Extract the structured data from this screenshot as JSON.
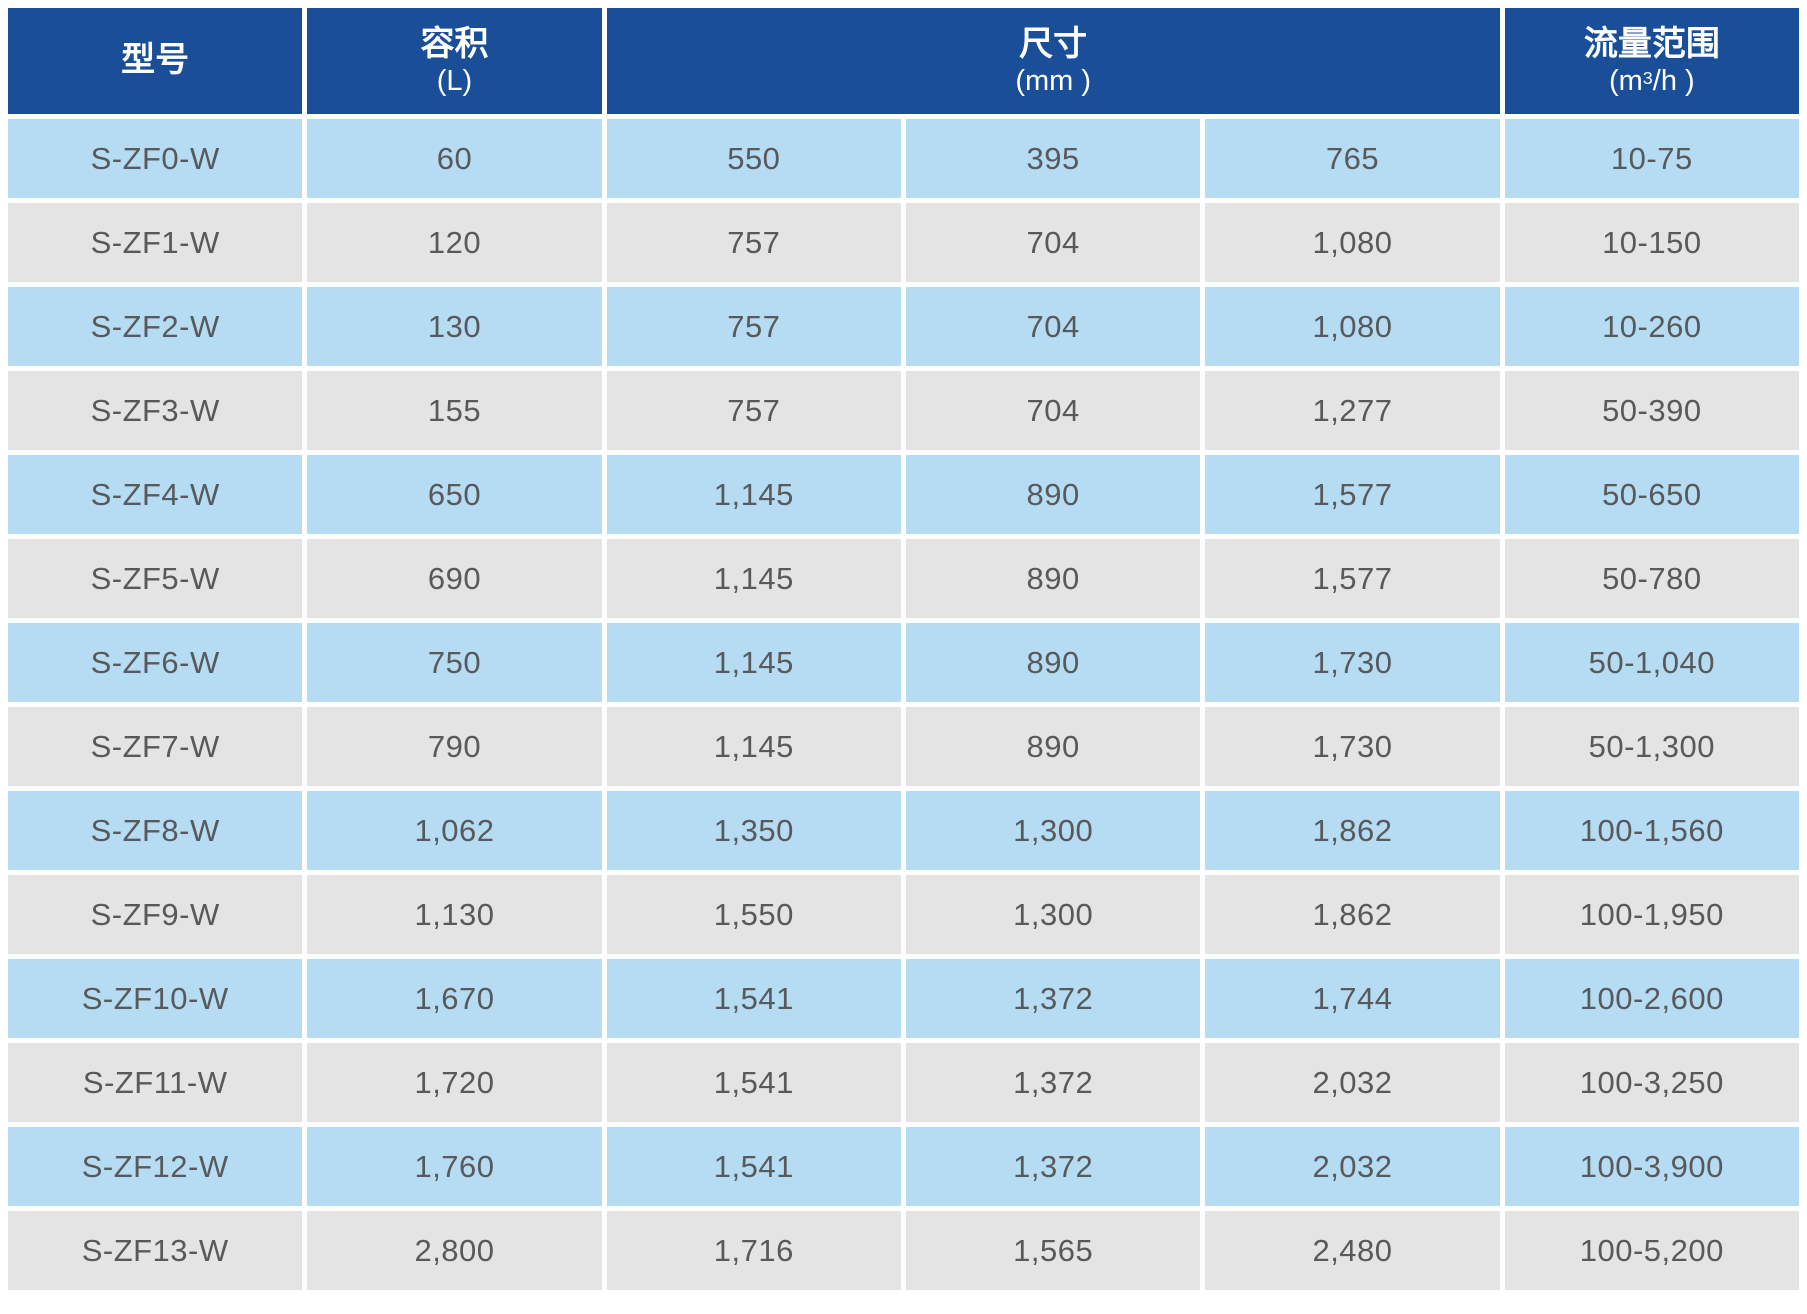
{
  "colors": {
    "header_bg": "#1A4E98",
    "header_text": "#FFFFFF",
    "row_blue": "#B6DCF3",
    "row_gray": "#E4E4E4",
    "cell_text": "#58595B"
  },
  "chart_data": {
    "type": "table",
    "header": {
      "model": "型号",
      "volume_title": "容积",
      "volume_unit": "(L)",
      "size_title": "尺寸",
      "size_unit": "(mm )",
      "flow_title": "流量范围",
      "flow_unit_prefix": "(m",
      "flow_unit_sup": "3",
      "flow_unit_suffix": "/h )"
    },
    "rows": [
      {
        "model": "S-ZF0-W",
        "volume": "60",
        "dim1": "550",
        "dim2": "395",
        "dim3": "765",
        "flow": "10-75"
      },
      {
        "model": "S-ZF1-W",
        "volume": "120",
        "dim1": "757",
        "dim2": "704",
        "dim3": "1,080",
        "flow": "10-150"
      },
      {
        "model": "S-ZF2-W",
        "volume": "130",
        "dim1": "757",
        "dim2": "704",
        "dim3": "1,080",
        "flow": "10-260"
      },
      {
        "model": "S-ZF3-W",
        "volume": "155",
        "dim1": "757",
        "dim2": "704",
        "dim3": "1,277",
        "flow": "50-390"
      },
      {
        "model": "S-ZF4-W",
        "volume": "650",
        "dim1": "1,145",
        "dim2": "890",
        "dim3": "1,577",
        "flow": "50-650"
      },
      {
        "model": "S-ZF5-W",
        "volume": "690",
        "dim1": "1,145",
        "dim2": "890",
        "dim3": "1,577",
        "flow": "50-780"
      },
      {
        "model": "S-ZF6-W",
        "volume": "750",
        "dim1": "1,145",
        "dim2": "890",
        "dim3": "1,730",
        "flow": "50-1,040"
      },
      {
        "model": "S-ZF7-W",
        "volume": "790",
        "dim1": "1,145",
        "dim2": "890",
        "dim3": "1,730",
        "flow": "50-1,300"
      },
      {
        "model": "S-ZF8-W",
        "volume": "1,062",
        "dim1": "1,350",
        "dim2": "1,300",
        "dim3": "1,862",
        "flow": "100-1,560"
      },
      {
        "model": "S-ZF9-W",
        "volume": "1,130",
        "dim1": "1,550",
        "dim2": "1,300",
        "dim3": "1,862",
        "flow": "100-1,950"
      },
      {
        "model": "S-ZF10-W",
        "volume": "1,670",
        "dim1": "1,541",
        "dim2": "1,372",
        "dim3": "1,744",
        "flow": "100-2,600"
      },
      {
        "model": "S-ZF11-W",
        "volume": "1,720",
        "dim1": "1,541",
        "dim2": "1,372",
        "dim3": "2,032",
        "flow": "100-3,250"
      },
      {
        "model": "S-ZF12-W",
        "volume": "1,760",
        "dim1": "1,541",
        "dim2": "1,372",
        "dim3": "2,032",
        "flow": "100-3,900"
      },
      {
        "model": "S-ZF13-W",
        "volume": "2,800",
        "dim1": "1,716",
        "dim2": "1,565",
        "dim3": "2,480",
        "flow": "100-5,200"
      }
    ]
  }
}
